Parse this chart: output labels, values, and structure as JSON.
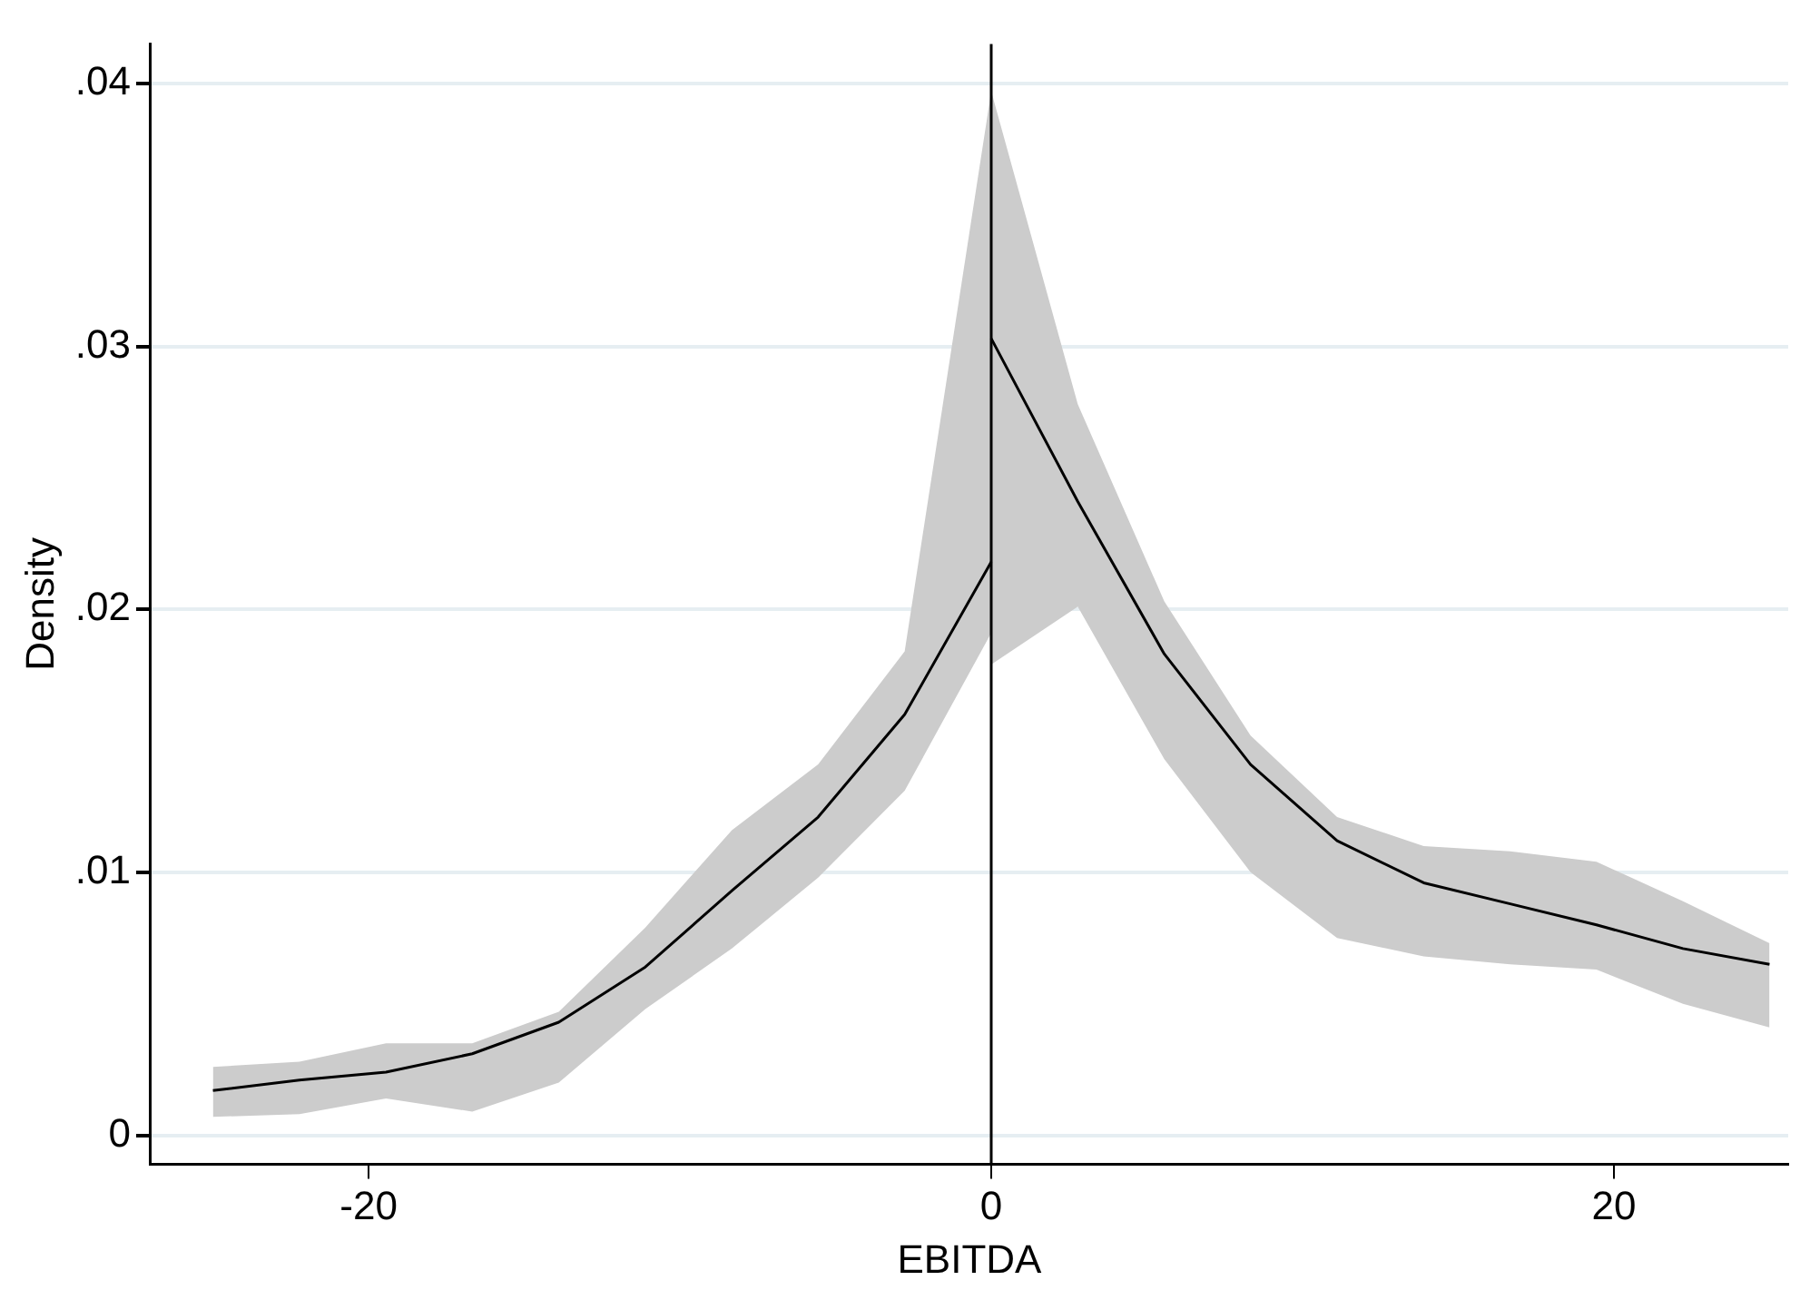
{
  "chart_data": {
    "type": "line",
    "xlabel": "EBITDA",
    "ylabel": "Density",
    "xlim": [
      -27,
      25.6
    ],
    "ylim": [
      -0.0011,
      0.0415
    ],
    "xticks": [
      -20,
      0,
      20
    ],
    "yticks": [
      {
        "value": 0,
        "label": "0"
      },
      {
        "value": 0.01,
        "label": ".01"
      },
      {
        "value": 0.02,
        "label": ".02"
      },
      {
        "value": 0.03,
        "label": ".03"
      },
      {
        "value": 0.04,
        "label": ".04"
      }
    ],
    "grid": "y",
    "legend": false,
    "marker": "none",
    "line_style": "solid",
    "ref_lines": [
      {
        "axis": "x",
        "value": 0,
        "color": "#000000"
      }
    ],
    "series": [
      {
        "color": "#000000",
        "x": [
          -25,
          -22.22,
          -19.44,
          -16.67,
          -13.89,
          -11.11,
          -8.33,
          -5.56,
          -2.78,
          0
        ],
        "values": [
          0.0017,
          0.0021,
          0.0024,
          0.0031,
          0.0043,
          0.0064,
          0.0093,
          0.0121,
          0.016,
          0.0218
        ],
        "lower": [
          0.0007,
          0.0008,
          0.0014,
          0.0009,
          0.002,
          0.0048,
          0.0071,
          0.0098,
          0.0131,
          0.0191
        ],
        "upper": [
          0.0026,
          0.0028,
          0.0035,
          0.0035,
          0.0047,
          0.0079,
          0.0116,
          0.0141,
          0.0184,
          0.0397
        ]
      },
      {
        "color": "#000000",
        "x": [
          0,
          2.78,
          5.56,
          8.33,
          11.11,
          13.89,
          16.67,
          19.44,
          22.22,
          25
        ],
        "values": [
          0.0303,
          0.0241,
          0.0183,
          0.0141,
          0.0112,
          0.0096,
          0.0088,
          0.008,
          0.0071,
          0.0065
        ],
        "lower": [
          0.0179,
          0.0201,
          0.0143,
          0.01,
          0.0075,
          0.0068,
          0.0065,
          0.0063,
          0.005,
          0.0041
        ],
        "upper": [
          0.0397,
          0.0278,
          0.0203,
          0.0152,
          0.0121,
          0.011,
          0.0108,
          0.0104,
          0.0089,
          0.0073
        ]
      }
    ]
  }
}
